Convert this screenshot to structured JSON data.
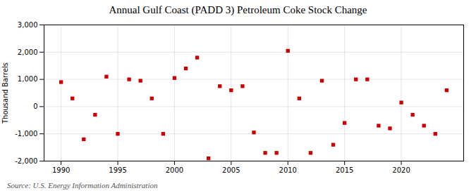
{
  "chart_data": {
    "type": "scatter",
    "title": "Annual Gulf Coast (PADD 3) Petroleum Coke Stock Change",
    "ylabel": "Thousand Barrels",
    "source": "Source: U.S. Energy Information Administration",
    "x": [
      1990,
      1991,
      1992,
      1993,
      1994,
      1995,
      1996,
      1997,
      1998,
      1999,
      2000,
      2001,
      2002,
      2003,
      2004,
      2005,
      2006,
      2007,
      2008,
      2009,
      2010,
      2011,
      2012,
      2013,
      2014,
      2015,
      2016,
      2017,
      2018,
      2019,
      2020,
      2021,
      2022,
      2023,
      2024
    ],
    "values": [
      900,
      300,
      -1200,
      -300,
      1100,
      -1000,
      1000,
      950,
      300,
      -1000,
      1050,
      1400,
      1800,
      -1900,
      750,
      600,
      750,
      -950,
      -1700,
      -1700,
      2050,
      300,
      -1700,
      950,
      -1400,
      -600,
      1000,
      1000,
      -700,
      -800,
      150,
      -300,
      -700,
      -1000,
      600
    ],
    "color": "#cc0000",
    "marker": "square",
    "xlim": [
      1988.5,
      2025.5
    ],
    "xticks": [
      1990,
      1995,
      2000,
      2005,
      2010,
      2015,
      2020
    ],
    "ylim": [
      -2000,
      3000
    ],
    "yticks": [
      {
        "value": -2000,
        "label": "-2,000"
      },
      {
        "value": -1000,
        "label": "-1,000"
      },
      0,
      {
        "value": 1000,
        "label": "1,000"
      },
      {
        "value": 2000,
        "label": "2,000"
      },
      {
        "value": 3000,
        "label": "3,000"
      }
    ],
    "grid": true
  }
}
